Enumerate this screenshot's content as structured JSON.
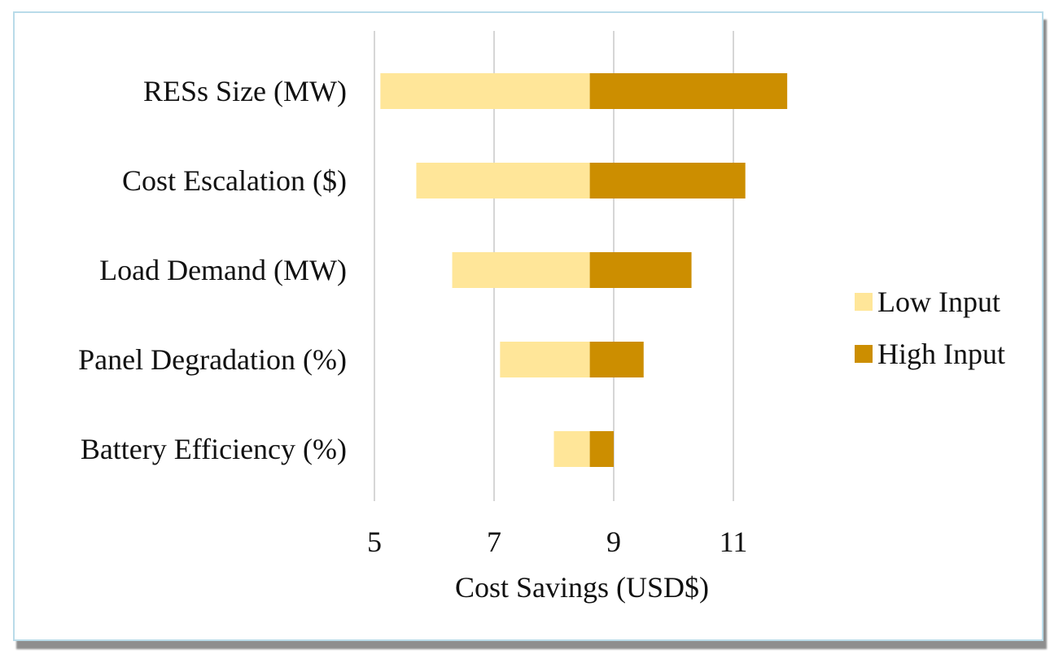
{
  "chart_data": {
    "type": "bar",
    "orientation": "horizontal",
    "variant": "tornado",
    "categories": [
      "RESs Size (MW)",
      "Cost Escalation ($)",
      "Load Demand (MW)",
      "Panel Degradation (%)",
      "Battery Efficiency (%)"
    ],
    "baseline": 8.6,
    "series": [
      {
        "name": "Low Input",
        "color": "#ffe699",
        "values": [
          5.1,
          5.7,
          6.3,
          7.1,
          8.0
        ]
      },
      {
        "name": "High Input",
        "color": "#cc8e00",
        "values": [
          11.9,
          11.2,
          10.3,
          9.5,
          9.0
        ]
      }
    ],
    "xlabel": "Cost Savings (USD$)",
    "ylabel": "",
    "xlim": [
      5,
      12
    ],
    "xticks": [
      5,
      7,
      9,
      11
    ],
    "grid": true,
    "legend_position": "right"
  }
}
